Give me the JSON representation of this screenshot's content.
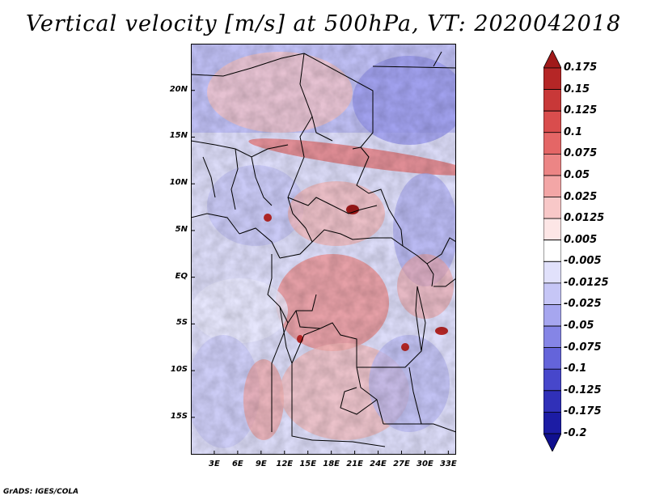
{
  "title": "Vertical velocity [m/s] at 500hPa, VT: 2020042018",
  "footer": "GrADS: IGES/COLA",
  "map": {
    "lon_range": [
      0,
      34
    ],
    "lat_range": [
      -19,
      25
    ],
    "lat_ticks": [
      {
        "value": 20,
        "label": "20N"
      },
      {
        "value": 15,
        "label": "15N"
      },
      {
        "value": 10,
        "label": "10N"
      },
      {
        "value": 5,
        "label": "5N"
      },
      {
        "value": 0,
        "label": "EQ"
      },
      {
        "value": -5,
        "label": "5S"
      },
      {
        "value": -10,
        "label": "10S"
      },
      {
        "value": -15,
        "label": "15S"
      }
    ],
    "lon_ticks": [
      {
        "value": 3,
        "label": "3E"
      },
      {
        "value": 6,
        "label": "6E"
      },
      {
        "value": 9,
        "label": "9E"
      },
      {
        "value": 12,
        "label": "12E"
      },
      {
        "value": 15,
        "label": "15E"
      },
      {
        "value": 18,
        "label": "18E"
      },
      {
        "value": 21,
        "label": "21E"
      },
      {
        "value": 24,
        "label": "24E"
      },
      {
        "value": 27,
        "label": "27E"
      },
      {
        "value": 30,
        "label": "30E"
      },
      {
        "value": 33,
        "label": "33E"
      }
    ]
  },
  "colorbar": {
    "labels": [
      "0.175",
      "0.15",
      "0.125",
      "0.1",
      "0.075",
      "0.05",
      "0.025",
      "0.0125",
      "0.005",
      "-0.005",
      "-0.0125",
      "-0.025",
      "-0.05",
      "-0.075",
      "-0.1",
      "-0.125",
      "-0.175",
      "-0.2"
    ],
    "colors": [
      "#a01a1a",
      "#b52626",
      "#c83838",
      "#d94d4d",
      "#e46666",
      "#ec8585",
      "#f3a6a6",
      "#f8c8c8",
      "#fde6e6",
      "#ffffff",
      "#e1e1fb",
      "#c6c6f6",
      "#a6a6ef",
      "#8585e6",
      "#6464da",
      "#4747cb",
      "#3030b8",
      "#1c1ca4",
      "#10108f"
    ]
  }
}
